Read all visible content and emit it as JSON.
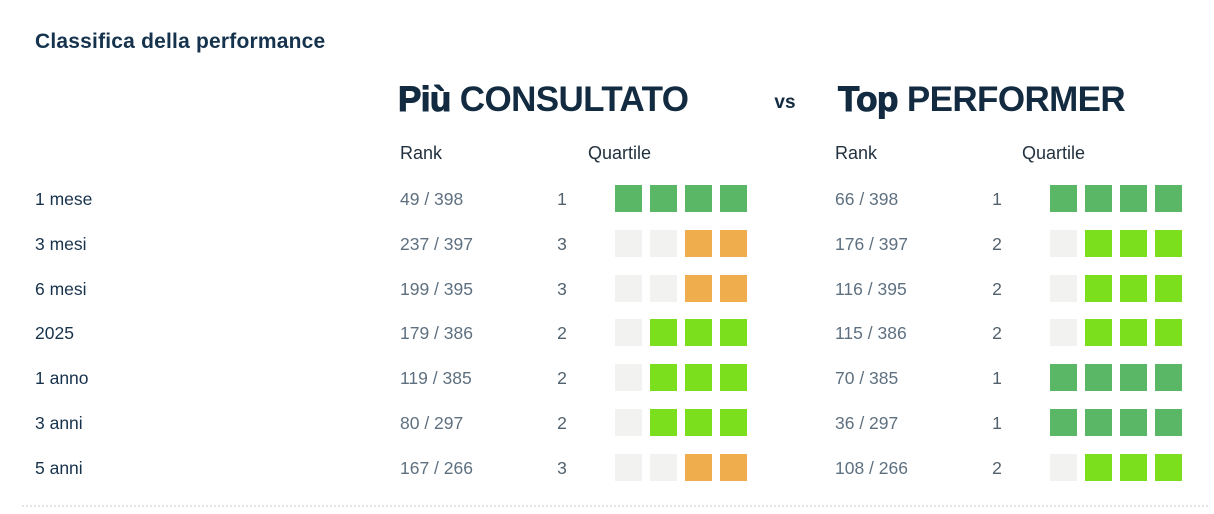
{
  "chart_data": {
    "type": "table",
    "title": "Classifica della performance",
    "vs_label": "vs",
    "left_group": {
      "title_strong": "Più",
      "title_rest": "CONSULTATO",
      "columns": [
        "Rank",
        "Quartile"
      ]
    },
    "right_group": {
      "title_strong": "Top",
      "title_rest": "PERFORMER",
      "columns": [
        "Rank",
        "Quartile"
      ]
    },
    "quartile_cells_total": 4,
    "quartile_patterns": {
      "1": [
        "q1",
        "q1",
        "q1",
        "q1"
      ],
      "2": [
        "empty",
        "q2",
        "q2",
        "q2"
      ],
      "3": [
        "empty",
        "empty",
        "q3",
        "q3"
      ]
    },
    "rows": [
      {
        "label": "1 mese",
        "left": {
          "rank": "49 / 398",
          "quartile": 1
        },
        "right": {
          "rank": "66 / 398",
          "quartile": 1
        }
      },
      {
        "label": "3 mesi",
        "left": {
          "rank": "237 / 397",
          "quartile": 3
        },
        "right": {
          "rank": "176 / 397",
          "quartile": 2
        }
      },
      {
        "label": "6 mesi",
        "left": {
          "rank": "199 / 395",
          "quartile": 3
        },
        "right": {
          "rank": "116 / 395",
          "quartile": 2
        }
      },
      {
        "label": "2025",
        "left": {
          "rank": "179 / 386",
          "quartile": 2
        },
        "right": {
          "rank": "115 / 386",
          "quartile": 2
        }
      },
      {
        "label": "1 anno",
        "left": {
          "rank": "119 / 385",
          "quartile": 2
        },
        "right": {
          "rank": "70 / 385",
          "quartile": 1
        }
      },
      {
        "label": "3 anni",
        "left": {
          "rank": "80 / 297",
          "quartile": 2
        },
        "right": {
          "rank": "36 / 297",
          "quartile": 1
        }
      },
      {
        "label": "5 anni",
        "left": {
          "rank": "167 / 266",
          "quartile": 3
        },
        "right": {
          "rank": "108 / 266",
          "quartile": 2
        }
      }
    ]
  },
  "colors": {
    "q1": "#5ab765",
    "q2": "#7cdf1d",
    "q3": "#f0ad4e",
    "empty": "#f2f2f0",
    "heading_text": "#132b40",
    "title_text": "#16334e",
    "label_text": "#17324c",
    "value_text": "#5e7080"
  }
}
